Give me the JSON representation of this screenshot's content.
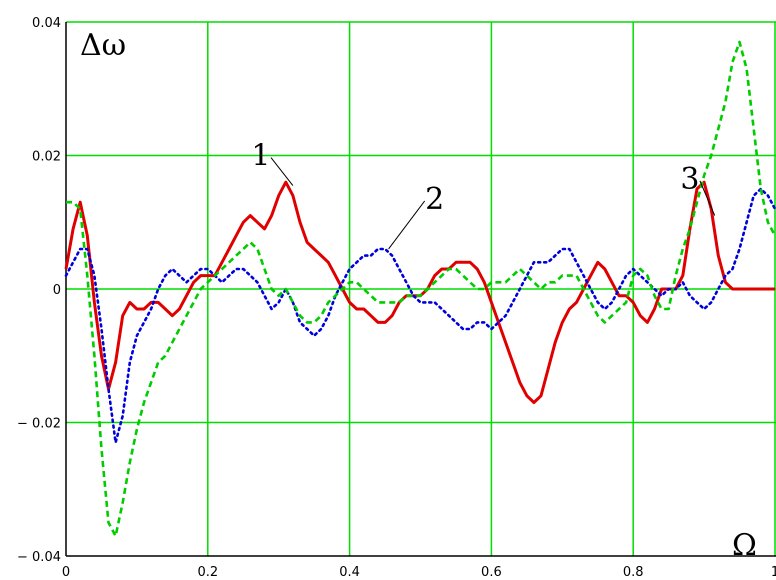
{
  "chart_data": {
    "type": "line",
    "ylabel": "Δω",
    "xlabel": "Ω",
    "xlim": [
      0,
      1
    ],
    "ylim": [
      -0.04,
      0.04
    ],
    "grid": true,
    "grid_color": "#00dd00",
    "x_ticks": [
      0,
      0.2,
      0.4,
      0.6,
      0.8,
      1
    ],
    "x_tick_labels": [
      "0",
      "0.2",
      "0.4",
      "0.6",
      "0.8",
      "1"
    ],
    "y_ticks": [
      0.04,
      0.02,
      0,
      -0.02,
      -0.04
    ],
    "y_tick_labels": [
      "0.04",
      "0.02",
      "0",
      "− 0.02",
      "− 0.04"
    ],
    "series": [
      {
        "name": "1",
        "color": "#e00000",
        "style": "solid",
        "x": [
          0,
          0.01,
          0.02,
          0.03,
          0.04,
          0.05,
          0.06,
          0.07,
          0.08,
          0.09,
          0.1,
          0.11,
          0.12,
          0.13,
          0.14,
          0.15,
          0.16,
          0.17,
          0.18,
          0.19,
          0.2,
          0.21,
          0.22,
          0.23,
          0.24,
          0.25,
          0.26,
          0.27,
          0.28,
          0.29,
          0.3,
          0.31,
          0.32,
          0.33,
          0.34,
          0.35,
          0.36,
          0.37,
          0.38,
          0.39,
          0.4,
          0.41,
          0.42,
          0.43,
          0.44,
          0.45,
          0.46,
          0.47,
          0.48,
          0.49,
          0.5,
          0.51,
          0.52,
          0.53,
          0.54,
          0.55,
          0.56,
          0.57,
          0.58,
          0.59,
          0.6,
          0.61,
          0.62,
          0.63,
          0.64,
          0.65,
          0.66,
          0.67,
          0.68,
          0.69,
          0.7,
          0.71,
          0.72,
          0.73,
          0.74,
          0.75,
          0.76,
          0.77,
          0.78,
          0.79,
          0.8,
          0.81,
          0.82,
          0.83,
          0.84,
          0.85,
          0.86,
          0.87,
          0.88,
          0.89,
          0.9,
          0.91,
          0.92,
          0.93,
          0.94,
          0.95,
          0.96,
          0.97,
          0.98,
          0.99,
          1
        ],
        "y": [
          0.003,
          0.009,
          0.013,
          0.008,
          -0.002,
          -0.01,
          -0.015,
          -0.011,
          -0.004,
          -0.002,
          -0.003,
          -0.003,
          -0.002,
          -0.002,
          -0.003,
          -0.004,
          -0.003,
          -0.001,
          0.001,
          0.002,
          0.002,
          0.002,
          0.004,
          0.006,
          0.008,
          0.01,
          0.011,
          0.01,
          0.009,
          0.011,
          0.014,
          0.016,
          0.014,
          0.01,
          0.007,
          0.006,
          0.005,
          0.004,
          0.002,
          0.0,
          -0.002,
          -0.003,
          -0.003,
          -0.004,
          -0.005,
          -0.005,
          -0.004,
          -0.002,
          -0.001,
          -0.001,
          -0.001,
          0.0,
          0.002,
          0.003,
          0.003,
          0.004,
          0.004,
          0.004,
          0.003,
          0.001,
          -0.002,
          -0.005,
          -0.008,
          -0.011,
          -0.014,
          -0.016,
          -0.017,
          -0.016,
          -0.012,
          -0.008,
          -0.005,
          -0.003,
          -0.002,
          0.0,
          0.002,
          0.004,
          0.003,
          0.001,
          -0.001,
          -0.001,
          -0.002,
          -0.004,
          -0.005,
          -0.003,
          0.0,
          0.0,
          0.0,
          0.002,
          0.009,
          0.015,
          0.016,
          0.012,
          0.005,
          0.001,
          0.0,
          0.0,
          0.0,
          0.0,
          0.0,
          0.0,
          0.0
        ]
      },
      {
        "name": "2",
        "color": "#0000dd",
        "style": "dotted",
        "x": [
          0,
          0.01,
          0.02,
          0.03,
          0.04,
          0.05,
          0.06,
          0.07,
          0.08,
          0.09,
          0.1,
          0.11,
          0.12,
          0.13,
          0.14,
          0.15,
          0.16,
          0.17,
          0.18,
          0.19,
          0.2,
          0.21,
          0.22,
          0.23,
          0.24,
          0.25,
          0.26,
          0.27,
          0.28,
          0.29,
          0.3,
          0.31,
          0.32,
          0.33,
          0.34,
          0.35,
          0.36,
          0.37,
          0.38,
          0.39,
          0.4,
          0.41,
          0.42,
          0.43,
          0.44,
          0.45,
          0.46,
          0.47,
          0.48,
          0.49,
          0.5,
          0.51,
          0.52,
          0.53,
          0.54,
          0.55,
          0.56,
          0.57,
          0.58,
          0.59,
          0.6,
          0.61,
          0.62,
          0.63,
          0.64,
          0.65,
          0.66,
          0.67,
          0.68,
          0.69,
          0.7,
          0.71,
          0.72,
          0.73,
          0.74,
          0.75,
          0.76,
          0.77,
          0.78,
          0.79,
          0.8,
          0.81,
          0.82,
          0.83,
          0.84,
          0.85,
          0.86,
          0.87,
          0.88,
          0.89,
          0.9,
          0.91,
          0.92,
          0.93,
          0.94,
          0.95,
          0.96,
          0.97,
          0.98,
          0.99,
          1
        ],
        "y": [
          0.002,
          0.004,
          0.006,
          0.006,
          0.002,
          -0.006,
          -0.015,
          -0.023,
          -0.019,
          -0.011,
          -0.007,
          -0.005,
          -0.003,
          0.0,
          0.002,
          0.003,
          0.002,
          0.001,
          0.002,
          0.003,
          0.003,
          0.002,
          0.001,
          0.002,
          0.003,
          0.003,
          0.002,
          0.001,
          -0.001,
          -0.003,
          -0.002,
          0.0,
          -0.002,
          -0.005,
          -0.006,
          -0.007,
          -0.006,
          -0.004,
          -0.001,
          0.001,
          0.003,
          0.004,
          0.005,
          0.005,
          0.006,
          0.006,
          0.005,
          0.003,
          0.001,
          -0.001,
          -0.002,
          -0.002,
          -0.002,
          -0.003,
          -0.004,
          -0.005,
          -0.006,
          -0.006,
          -0.005,
          -0.005,
          -0.006,
          -0.005,
          -0.004,
          -0.002,
          0.0,
          0.002,
          0.004,
          0.004,
          0.004,
          0.005,
          0.006,
          0.006,
          0.004,
          0.002,
          0.0,
          -0.002,
          -0.003,
          -0.002,
          0.0,
          0.002,
          0.003,
          0.002,
          0.001,
          0.0,
          -0.001,
          0.0,
          0.0,
          0.001,
          -0.001,
          -0.002,
          -0.003,
          -0.002,
          0.0,
          0.002,
          0.003,
          0.006,
          0.01,
          0.014,
          0.015,
          0.014,
          0.012
        ]
      },
      {
        "name": "3",
        "color": "#00cc00",
        "style": "dashed",
        "x": [
          0,
          0.01,
          0.02,
          0.03,
          0.04,
          0.05,
          0.06,
          0.07,
          0.08,
          0.09,
          0.1,
          0.11,
          0.12,
          0.13,
          0.14,
          0.15,
          0.16,
          0.17,
          0.18,
          0.19,
          0.2,
          0.21,
          0.22,
          0.23,
          0.24,
          0.25,
          0.26,
          0.27,
          0.28,
          0.29,
          0.3,
          0.31,
          0.32,
          0.33,
          0.34,
          0.35,
          0.36,
          0.37,
          0.38,
          0.39,
          0.4,
          0.41,
          0.42,
          0.43,
          0.44,
          0.45,
          0.46,
          0.47,
          0.48,
          0.49,
          0.5,
          0.51,
          0.52,
          0.53,
          0.54,
          0.55,
          0.56,
          0.57,
          0.58,
          0.59,
          0.6,
          0.61,
          0.62,
          0.63,
          0.64,
          0.65,
          0.66,
          0.67,
          0.68,
          0.69,
          0.7,
          0.71,
          0.72,
          0.73,
          0.74,
          0.75,
          0.76,
          0.77,
          0.78,
          0.79,
          0.8,
          0.81,
          0.82,
          0.83,
          0.84,
          0.85,
          0.86,
          0.87,
          0.88,
          0.89,
          0.9,
          0.91,
          0.92,
          0.93,
          0.94,
          0.95,
          0.96,
          0.97,
          0.98,
          0.99,
          1
        ],
        "y": [
          0.013,
          0.013,
          0.012,
          0.002,
          -0.01,
          -0.024,
          -0.035,
          -0.037,
          -0.032,
          -0.026,
          -0.021,
          -0.017,
          -0.014,
          -0.011,
          -0.01,
          -0.008,
          -0.006,
          -0.004,
          -0.002,
          0.0,
          0.001,
          0.002,
          0.003,
          0.004,
          0.005,
          0.006,
          0.007,
          0.006,
          0.003,
          0.0,
          -0.001,
          0.0,
          -0.002,
          -0.004,
          -0.005,
          -0.005,
          -0.004,
          -0.002,
          -0.001,
          0.0,
          0.001,
          0.001,
          0.0,
          -0.001,
          -0.002,
          -0.002,
          -0.002,
          -0.002,
          -0.001,
          -0.001,
          -0.001,
          0.0,
          0.001,
          0.002,
          0.003,
          0.003,
          0.002,
          0.001,
          0.0,
          0.0,
          0.001,
          0.001,
          0.001,
          0.002,
          0.003,
          0.002,
          0.001,
          0.0,
          0.001,
          0.001,
          0.002,
          0.002,
          0.002,
          0.0,
          -0.002,
          -0.004,
          -0.005,
          -0.004,
          -0.003,
          -0.002,
          0.002,
          0.003,
          0.002,
          -0.001,
          -0.003,
          -0.003,
          0.002,
          0.006,
          0.009,
          0.013,
          0.017,
          0.02,
          0.024,
          0.028,
          0.034,
          0.037,
          0.033,
          0.024,
          0.015,
          0.01,
          0.008
        ]
      }
    ],
    "annotations": [
      {
        "text": "1",
        "series": "1",
        "at_x": 0.32,
        "at_y": 0.0155,
        "label_x": 0.275,
        "label_y": 0.0185
      },
      {
        "text": "2",
        "series": "2",
        "at_x": 0.455,
        "at_y": 0.006,
        "label_x": 0.52,
        "label_y": 0.012
      },
      {
        "text": "3",
        "series": "3",
        "at_x": 0.915,
        "at_y": 0.011,
        "label_x": 0.88,
        "label_y": 0.015
      }
    ]
  }
}
